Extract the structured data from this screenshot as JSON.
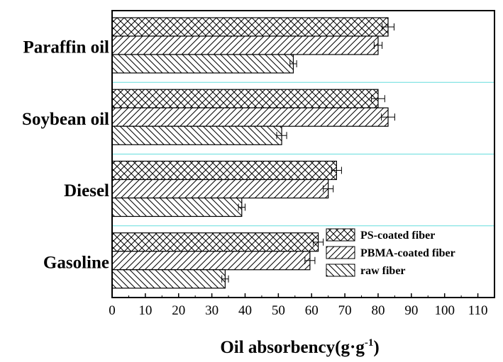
{
  "chart_data": {
    "type": "bar",
    "orientation": "horizontal",
    "categories": [
      "Gasoline",
      "Diesel",
      "Soybean oil",
      "Paraffin oil"
    ],
    "series": [
      {
        "name": "PS-coated fiber",
        "values": [
          62,
          67.5,
          80,
          83
        ],
        "errors": [
          1.5,
          1.5,
          2,
          1.8
        ],
        "pattern": "crosshatch"
      },
      {
        "name": "PBMA-coated fiber",
        "values": [
          59.5,
          65,
          83,
          80
        ],
        "errors": [
          1.5,
          1.5,
          2,
          1.2
        ],
        "pattern": "diagonal-up"
      },
      {
        "name": "raw fiber",
        "values": [
          34,
          39,
          51,
          54.5
        ],
        "errors": [
          1,
          1,
          1.5,
          1
        ],
        "pattern": "diagonal-down"
      }
    ],
    "xlabel": "Oil absorbency",
    "xlabel_unit": {
      "open": "(",
      "base": "g·g",
      "sup": "-1",
      "close": ")"
    },
    "xlim": [
      0,
      115
    ],
    "xticks": [
      0,
      10,
      20,
      30,
      40,
      50,
      60,
      70,
      80,
      90,
      100,
      110
    ],
    "legend_position": "bottom-right",
    "colors": {
      "bar_stroke": "#000000",
      "separator": "#66dddd",
      "background": "#ffffff"
    }
  }
}
